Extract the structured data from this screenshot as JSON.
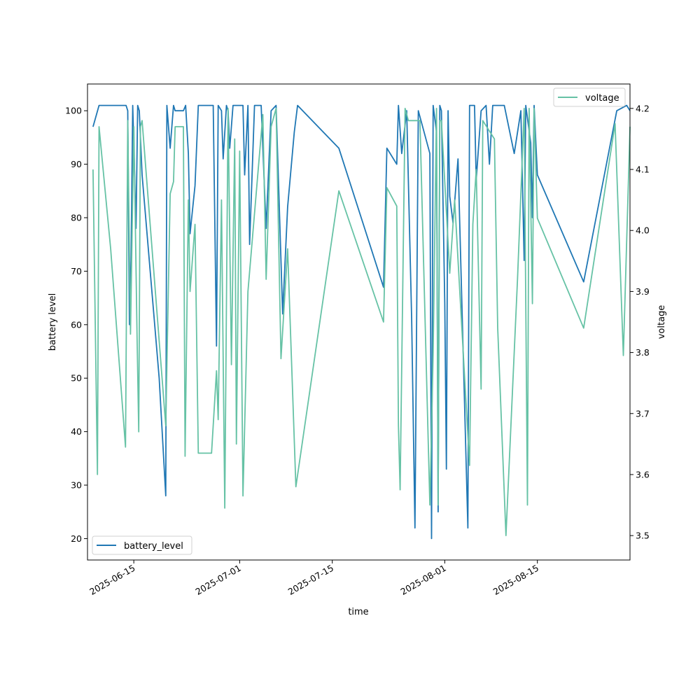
{
  "chart_data": {
    "type": "line",
    "xlabel": "time",
    "ylabel": "battery level",
    "y2label": "voltage",
    "xlim": [
      "2025-06-08T00:00",
      "2025-08-29T00:00"
    ],
    "ylim": [
      16,
      105
    ],
    "y2lim": [
      3.46,
      4.24
    ],
    "x_ticks": [
      "2025-06-15",
      "2025-07-01",
      "2025-07-15",
      "2025-08-01",
      "2025-08-15"
    ],
    "y_ticks": [
      20,
      30,
      40,
      50,
      60,
      70,
      80,
      90,
      100
    ],
    "y2_ticks": [
      3.5,
      3.6,
      3.7,
      3.8,
      3.9,
      4.0,
      4.1,
      4.2
    ],
    "grid": false,
    "series": [
      {
        "name": "battery_level",
        "axis": "left",
        "color": "#1f77b4",
        "legend": "lower-left",
        "points": [
          [
            "2025-06-08T20:00",
            97
          ],
          [
            "2025-06-09T18:00",
            101
          ],
          [
            "2025-06-13T20:00",
            101
          ],
          [
            "2025-06-14T02:00",
            100
          ],
          [
            "2025-06-14T08:00",
            60
          ],
          [
            "2025-06-14T14:00",
            72
          ],
          [
            "2025-06-14T20:00",
            101
          ],
          [
            "2025-06-15T02:00",
            90
          ],
          [
            "2025-06-15T08:00",
            78
          ],
          [
            "2025-06-15T14:00",
            101
          ],
          [
            "2025-06-15T20:00",
            100
          ],
          [
            "2025-06-16T06:00",
            88
          ],
          [
            "2025-06-18T20:00",
            50
          ],
          [
            "2025-06-19T20:00",
            28
          ],
          [
            "2025-06-20T00:00",
            101
          ],
          [
            "2025-06-20T12:00",
            93
          ],
          [
            "2025-06-21T00:00",
            101
          ],
          [
            "2025-06-21T06:00",
            100
          ],
          [
            "2025-06-22T12:00",
            100
          ],
          [
            "2025-06-22T20:00",
            101
          ],
          [
            "2025-06-23T06:00",
            92
          ],
          [
            "2025-06-23T12:00",
            77
          ],
          [
            "2025-06-24T06:00",
            86
          ],
          [
            "2025-06-24T18:00",
            101
          ],
          [
            "2025-06-27T00:00",
            101
          ],
          [
            "2025-06-27T12:00",
            56
          ],
          [
            "2025-06-27T18:00",
            101
          ],
          [
            "2025-06-28T06:00",
            100
          ],
          [
            "2025-06-28T12:00",
            91
          ],
          [
            "2025-06-29T00:00",
            101
          ],
          [
            "2025-06-29T06:00",
            100
          ],
          [
            "2025-06-29T12:00",
            93
          ],
          [
            "2025-06-30T00:00",
            101
          ],
          [
            "2025-07-01T12:00",
            101
          ],
          [
            "2025-07-01T18:00",
            88
          ],
          [
            "2025-07-02T06:00",
            101
          ],
          [
            "2025-07-02T12:00",
            75
          ],
          [
            "2025-07-03T06:00",
            101
          ],
          [
            "2025-07-04T06:00",
            101
          ],
          [
            "2025-07-04T12:00",
            93
          ],
          [
            "2025-07-05T00:00",
            78
          ],
          [
            "2025-07-05T18:00",
            100
          ],
          [
            "2025-07-06T12:00",
            101
          ],
          [
            "2025-07-07T12:00",
            62
          ],
          [
            "2025-07-08T06:00",
            82
          ],
          [
            "2025-07-09T06:00",
            96
          ],
          [
            "2025-07-09T18:00",
            101
          ],
          [
            "2025-07-16T00:00",
            93
          ],
          [
            "2025-07-22T18:00",
            67
          ],
          [
            "2025-07-23T06:00",
            93
          ],
          [
            "2025-07-24T18:00",
            90
          ],
          [
            "2025-07-25T00:00",
            101
          ],
          [
            "2025-07-25T12:00",
            92
          ],
          [
            "2025-07-26T06:00",
            100
          ],
          [
            "2025-07-27T00:00",
            61
          ],
          [
            "2025-07-27T12:00",
            22
          ],
          [
            "2025-07-28T00:00",
            100
          ],
          [
            "2025-07-29T18:00",
            92
          ],
          [
            "2025-07-30T00:00",
            20
          ],
          [
            "2025-07-30T06:00",
            101
          ],
          [
            "2025-07-30T18:00",
            96
          ],
          [
            "2025-07-31T00:00",
            25
          ],
          [
            "2025-07-31T06:00",
            101
          ],
          [
            "2025-07-31T12:00",
            100
          ],
          [
            "2025-08-01T00:00",
            64
          ],
          [
            "2025-08-01T06:00",
            33
          ],
          [
            "2025-08-01T12:00",
            100
          ],
          [
            "2025-08-01T18:00",
            84
          ],
          [
            "2025-08-02T06:00",
            79
          ],
          [
            "2025-08-03T00:00",
            91
          ],
          [
            "2025-08-04T12:00",
            22
          ],
          [
            "2025-08-04T18:00",
            101
          ],
          [
            "2025-08-05T12:00",
            101
          ],
          [
            "2025-08-05T18:00",
            87
          ],
          [
            "2025-08-06T12:00",
            100
          ],
          [
            "2025-08-07T06:00",
            101
          ],
          [
            "2025-08-07T18:00",
            90
          ],
          [
            "2025-08-08T06:00",
            101
          ],
          [
            "2025-08-08T12:00",
            101
          ],
          [
            "2025-08-09T00:00",
            101
          ],
          [
            "2025-08-10T00:00",
            101
          ],
          [
            "2025-08-11T12:00",
            92
          ],
          [
            "2025-08-12T12:00",
            100
          ],
          [
            "2025-08-13T00:00",
            72
          ],
          [
            "2025-08-13T06:00",
            101
          ],
          [
            "2025-08-14T00:00",
            94
          ],
          [
            "2025-08-14T06:00",
            80
          ],
          [
            "2025-08-14T12:00",
            101
          ],
          [
            "2025-08-15T00:00",
            88
          ],
          [
            "2025-08-22T00:00",
            68
          ],
          [
            "2025-08-27T00:00",
            100
          ],
          [
            "2025-08-28T12:00",
            101
          ],
          [
            "2025-08-29T00:00",
            100
          ]
        ]
      },
      {
        "name": "voltage",
        "axis": "right",
        "color": "#66c2a5",
        "legend": "upper-right",
        "points": [
          [
            "2025-06-08T20:00",
            4.1
          ],
          [
            "2025-06-09T12:00",
            3.6
          ],
          [
            "2025-06-09T18:00",
            4.17
          ],
          [
            "2025-06-11T12:00",
            3.97
          ],
          [
            "2025-06-13T18:00",
            3.645
          ],
          [
            "2025-06-14T02:00",
            4.18
          ],
          [
            "2025-06-14T12:00",
            3.83
          ],
          [
            "2025-06-15T00:00",
            4.17
          ],
          [
            "2025-06-15T12:00",
            3.82
          ],
          [
            "2025-06-15T18:00",
            3.67
          ],
          [
            "2025-06-16T00:00",
            4.17
          ],
          [
            "2025-06-16T06:00",
            4.18
          ],
          [
            "2025-06-19T20:00",
            3.68
          ],
          [
            "2025-06-20T12:00",
            4.06
          ],
          [
            "2025-06-21T00:00",
            4.08
          ],
          [
            "2025-06-21T06:00",
            4.17
          ],
          [
            "2025-06-22T12:00",
            4.17
          ],
          [
            "2025-06-22T18:00",
            3.63
          ],
          [
            "2025-06-23T06:00",
            4.05
          ],
          [
            "2025-06-23T12:00",
            3.9
          ],
          [
            "2025-06-24T06:00",
            4.01
          ],
          [
            "2025-06-24T18:00",
            3.635
          ],
          [
            "2025-06-26T18:00",
            3.635
          ],
          [
            "2025-06-27T12:00",
            3.77
          ],
          [
            "2025-06-27T18:00",
            3.69
          ],
          [
            "2025-06-28T06:00",
            4.05
          ],
          [
            "2025-06-28T18:00",
            3.545
          ],
          [
            "2025-06-29T06:00",
            4.2
          ],
          [
            "2025-06-29T18:00",
            3.78
          ],
          [
            "2025-06-30T06:00",
            4.15
          ],
          [
            "2025-06-30T12:00",
            3.65
          ],
          [
            "2025-07-01T00:00",
            4.13
          ],
          [
            "2025-07-01T12:00",
            3.565
          ],
          [
            "2025-07-02T06:00",
            3.9
          ],
          [
            "2025-07-04T12:00",
            4.19
          ],
          [
            "2025-07-05T00:00",
            3.92
          ],
          [
            "2025-07-05T18:00",
            4.17
          ],
          [
            "2025-07-06T12:00",
            4.2
          ],
          [
            "2025-07-07T06:00",
            3.79
          ],
          [
            "2025-07-08T06:00",
            3.97
          ],
          [
            "2025-07-09T12:00",
            3.58
          ],
          [
            "2025-07-16T00:00",
            4.065
          ],
          [
            "2025-07-22T18:00",
            3.85
          ],
          [
            "2025-07-23T06:00",
            4.07
          ],
          [
            "2025-07-24T18:00",
            4.04
          ],
          [
            "2025-07-25T00:00",
            3.68
          ],
          [
            "2025-07-25T06:00",
            3.575
          ],
          [
            "2025-07-26T00:00",
            4.2
          ],
          [
            "2025-07-26T12:00",
            4.18
          ],
          [
            "2025-07-28T06:00",
            4.18
          ],
          [
            "2025-07-29T18:00",
            3.55
          ],
          [
            "2025-07-30T06:00",
            3.8
          ],
          [
            "2025-07-30T18:00",
            4.2
          ],
          [
            "2025-07-31T00:00",
            3.55
          ],
          [
            "2025-07-31T06:00",
            4.18
          ],
          [
            "2025-07-31T12:00",
            4.18
          ],
          [
            "2025-08-01T18:00",
            3.93
          ],
          [
            "2025-08-02T12:00",
            4.05
          ],
          [
            "2025-08-04T18:00",
            3.615
          ],
          [
            "2025-08-05T06:00",
            4.01
          ],
          [
            "2025-08-05T18:00",
            4.1
          ],
          [
            "2025-08-06T12:00",
            3.74
          ],
          [
            "2025-08-06T18:00",
            4.18
          ],
          [
            "2025-08-08T12:00",
            4.15
          ],
          [
            "2025-08-09T00:00",
            3.84
          ],
          [
            "2025-08-10T06:00",
            3.5
          ],
          [
            "2025-08-12T00:00",
            3.92
          ],
          [
            "2025-08-12T12:00",
            4.06
          ],
          [
            "2025-08-13T00:00",
            4.2
          ],
          [
            "2025-08-13T12:00",
            3.55
          ],
          [
            "2025-08-13T18:00",
            4.2
          ],
          [
            "2025-08-14T06:00",
            3.88
          ],
          [
            "2025-08-14T12:00",
            4.2
          ],
          [
            "2025-08-15T00:00",
            4.02
          ],
          [
            "2025-08-22T00:00",
            3.84
          ],
          [
            "2025-08-26T18:00",
            4.175
          ],
          [
            "2025-08-28T00:00",
            3.795
          ],
          [
            "2025-08-29T00:00",
            4.17
          ]
        ]
      }
    ]
  }
}
